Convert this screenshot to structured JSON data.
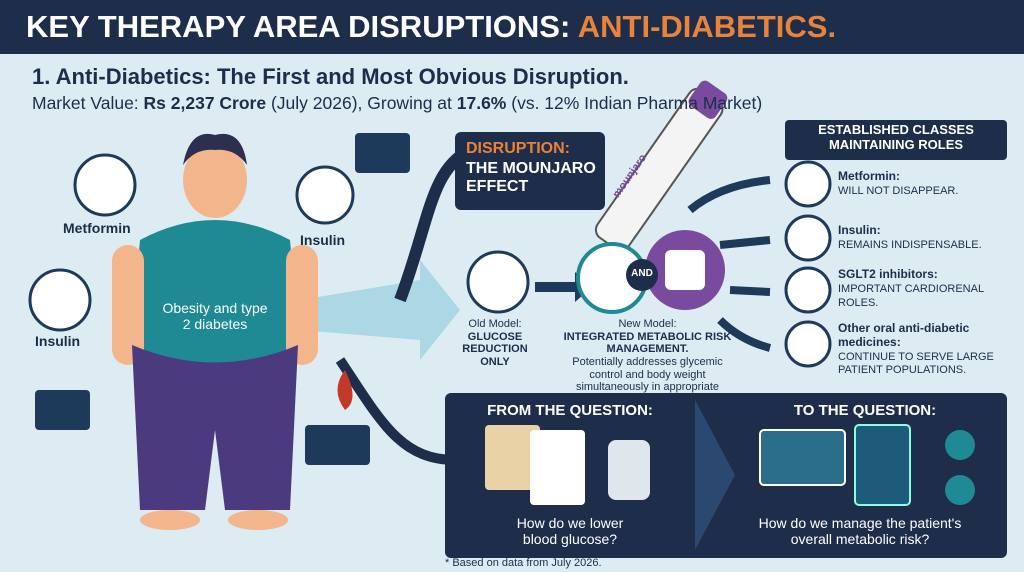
{
  "header": {
    "title": "KEY THERAPY AREA DISRUPTIONS: ",
    "title_highlight": "ANTI-DIABETICS."
  },
  "subtitle": "1. Anti-Diabetics: The First and Most Obvious Disruption.",
  "market": {
    "prefix": "Market Value: ",
    "value": "Rs 2,237 Crore",
    "date": " (July 2026), Growing at ",
    "growth": "17.6%",
    "comparison": " (vs. 12% Indian Pharma Market)"
  },
  "figure": {
    "label": "Obesity and type 2 diabetes",
    "icons": [
      "Metformin",
      "Insulin",
      "Insulin"
    ]
  },
  "disruption": {
    "label": "DISRUPTION:",
    "title": "THE MOUNJARO EFFECT",
    "pen": "mounjaro",
    "and": "AND"
  },
  "old_model": {
    "label": "Old Model:",
    "text": "GLUCOSE REDUCTION ONLY"
  },
  "new_model": {
    "label": "New Model:",
    "text": "INTEGRATED METABOLIC RISK MANAGEMENT.",
    "note": "Potentially addresses glycemic control and body weight simultaneously in appropriate patients."
  },
  "established": {
    "title": "ESTABLISHED CLASSES MAINTAINING ROLES",
    "items": [
      {
        "name": "Metformin:",
        "role": "WILL NOT DISAPPEAR."
      },
      {
        "name": "Insulin:",
        "role": "REMAINS INDISPENSABLE."
      },
      {
        "name": "SGLT2 inhibitors:",
        "role": "IMPORTANT CARDIORENAL ROLES."
      },
      {
        "name": "Other oral anti-diabetic medicines:",
        "role": "CONTINUE TO SERVE LARGE PATIENT POPULATIONS."
      }
    ]
  },
  "questions": {
    "from_label": "FROM THE QUESTION:",
    "from_text": "How do we lower blood glucose?",
    "to_label": "TO THE QUESTION:",
    "to_text": "How do we manage the patient's overall metabolic risk?"
  },
  "footnote": "* Based on data from July 2026."
}
